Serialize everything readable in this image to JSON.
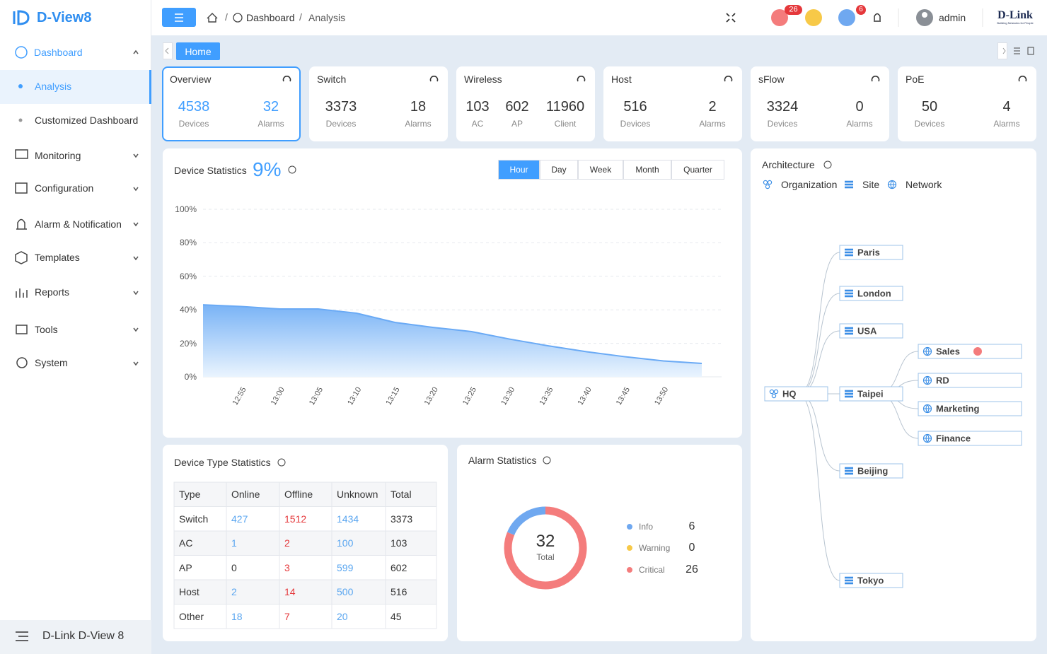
{
  "sidebar": {
    "logo": "D-View8",
    "menu": [
      {
        "label": "Dashboard",
        "children": [
          "Analysis",
          "Customized Dashboard"
        ]
      },
      {
        "label": "Monitoring"
      },
      {
        "label": "Configuration"
      },
      {
        "label": "Alarm & Notification"
      },
      {
        "label": "Templates"
      },
      {
        "label": "Reports"
      },
      {
        "label": "Tools"
      },
      {
        "label": "System"
      }
    ],
    "footer": "D-Link D-View 8"
  },
  "topbar": {
    "breadcrumb": [
      "Dashboard",
      "Analysis"
    ],
    "alarm_badges": [
      26,
      6
    ],
    "user": "admin",
    "brand": "D-Link",
    "brand_tagline": "Building Networks for People"
  },
  "tabs": [
    "Home"
  ],
  "summary_cards": [
    {
      "title": "Overview",
      "stats": [
        {
          "value": 4538,
          "label": "Devices"
        },
        {
          "value": 32,
          "label": "Alarms"
        }
      ]
    },
    {
      "title": "Switch",
      "stats": [
        {
          "value": 3373,
          "label": "Devices"
        },
        {
          "value": 18,
          "label": "Alarms"
        }
      ]
    },
    {
      "title": "Wireless",
      "stats": [
        {
          "value": 103,
          "label": "AC"
        },
        {
          "value": 602,
          "label": "AP"
        },
        {
          "value": 11960,
          "label": "Client"
        }
      ]
    },
    {
      "title": "Host",
      "stats": [
        {
          "value": 516,
          "label": "Devices"
        },
        {
          "value": 2,
          "label": "Alarms"
        }
      ]
    },
    {
      "title": "sFlow",
      "stats": [
        {
          "value": 3324,
          "label": "Devices"
        },
        {
          "value": 0,
          "label": "Alarms"
        }
      ]
    },
    {
      "title": "PoE",
      "stats": [
        {
          "value": 50,
          "label": "Devices"
        },
        {
          "value": 4,
          "label": "Alarms"
        }
      ]
    }
  ],
  "device_statistics": {
    "title": "Device Statistics",
    "utilization": "9%",
    "ranges": [
      "Hour",
      "Day",
      "Week",
      "Month",
      "Quarter"
    ],
    "active_range": 0,
    "chart": {
      "type": "area",
      "categories": [
        null,
        "12:55",
        "13:00",
        "13:05",
        "13:10",
        "13:15",
        "13:20",
        "13:25",
        "13:30",
        "13:35",
        "13:40",
        "13:45",
        "13:50",
        null
      ],
      "values": [
        43,
        42,
        40.5,
        40.5,
        38,
        32.5,
        29.5,
        27,
        22.5,
        18.5,
        15,
        12,
        9.5,
        8
      ],
      "color": "#6aaaf5",
      "ylim": [
        0,
        100
      ],
      "yticks": [
        {
          "value": 0,
          "label": "0%"
        },
        {
          "value": 20,
          "label": "20%"
        },
        {
          "value": 40,
          "label": "40%"
        },
        {
          "value": 60,
          "label": "60%"
        },
        {
          "value": 80,
          "label": "80%"
        },
        {
          "value": 100,
          "label": "100%"
        }
      ],
      "grid": true
    }
  },
  "device_type_statistics": {
    "title": "Device Type Statistics",
    "columns": [
      "Type",
      "Online",
      "Offline",
      "Unknown",
      "Total"
    ],
    "rows": [
      [
        "Switch",
        427,
        1512,
        1434,
        3373
      ],
      [
        "AC",
        1,
        2,
        100,
        103
      ],
      [
        "AP",
        0,
        3,
        599,
        602
      ],
      [
        "Host",
        2,
        14,
        500,
        516
      ],
      [
        "Other",
        18,
        7,
        20,
        45
      ]
    ]
  },
  "alarm_statistics": {
    "title": "Alarm Statistics",
    "chart": {
      "type": "donut",
      "total": 32,
      "total_label": "Total",
      "categories": [
        "Info",
        "Warning",
        "Critical"
      ],
      "values": [
        6,
        0,
        26
      ],
      "colors": [
        "#6fa8f0",
        "#f7c948",
        "#f47c7c"
      ]
    }
  },
  "architecture": {
    "title": "Architecture",
    "legend": [
      "Organization",
      "Site",
      "Network"
    ],
    "root": "HQ",
    "sites": [
      "Paris",
      "London",
      "USA",
      "Taipei",
      "Beijing",
      "Tokyo"
    ],
    "networks": [
      "Sales",
      "RD",
      "Marketing",
      "Finance"
    ]
  }
}
